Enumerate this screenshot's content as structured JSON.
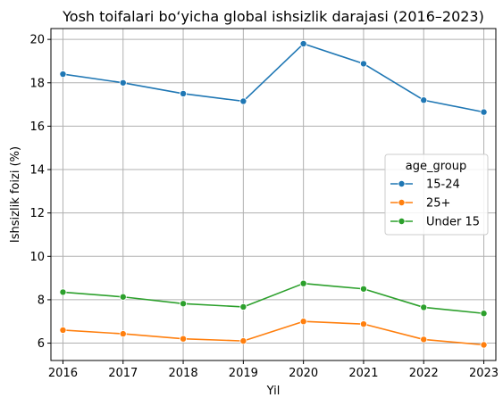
{
  "chart_data": {
    "type": "line",
    "title": "Yosh toifalari bo‘yicha global ishsizlik darajasi (2016–2023)",
    "xlabel": "Yil",
    "ylabel": "Ishsizlik foizi (%)",
    "x": [
      2016,
      2017,
      2018,
      2019,
      2020,
      2021,
      2022,
      2023
    ],
    "x_ticks": [
      "2016",
      "2017",
      "2018",
      "2019",
      "2020",
      "2021",
      "2022",
      "2023"
    ],
    "y_ticks": [
      "6",
      "8",
      "10",
      "12",
      "14",
      "16",
      "18",
      "20"
    ],
    "xlim": [
      2015.8,
      2023.2
    ],
    "ylim": [
      5.2,
      20.5
    ],
    "grid": true,
    "legend": {
      "title": "age_group",
      "placement": "center-right"
    },
    "series": [
      {
        "name": "15-24",
        "color": "#1f77b4",
        "values": [
          18.4,
          18.0,
          17.5,
          17.15,
          19.8,
          18.88,
          17.2,
          16.65
        ]
      },
      {
        "name": "25+",
        "color": "#ff7f0e",
        "values": [
          6.6,
          6.43,
          6.2,
          6.1,
          7.0,
          6.88,
          6.17,
          5.92
        ]
      },
      {
        "name": "Under 15",
        "color": "#2ca02c",
        "values": [
          8.35,
          8.13,
          7.82,
          7.67,
          8.75,
          8.5,
          7.65,
          7.37
        ]
      }
    ]
  }
}
